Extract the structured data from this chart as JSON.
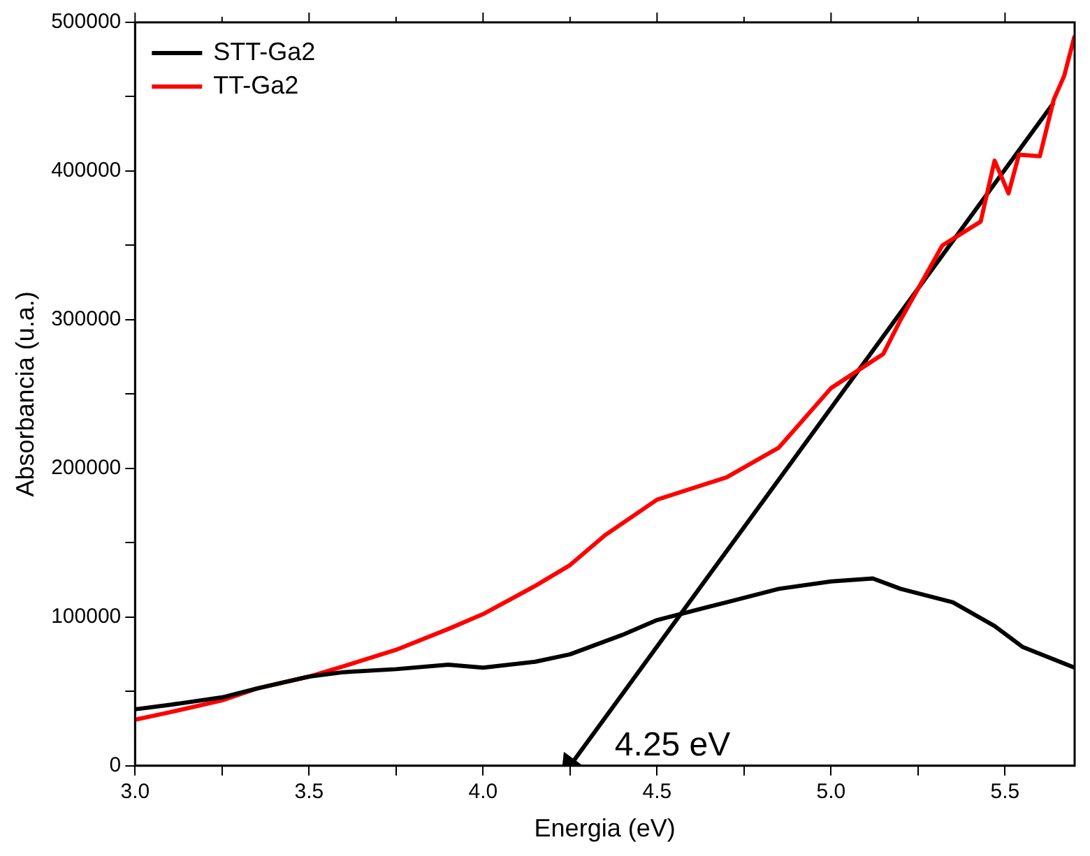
{
  "chart_data": {
    "type": "line",
    "xlabel": "Energia (eV)",
    "ylabel": "Absorbancia (u.a.)",
    "xlim": [
      3.0,
      5.7
    ],
    "xticks": [
      {
        "value": 3.0,
        "label": "3.0"
      },
      {
        "value": 3.25,
        "label": null
      },
      {
        "value": 3.5,
        "label": "3.5"
      },
      {
        "value": 3.75,
        "label": null
      },
      {
        "value": 4.0,
        "label": "4.0"
      },
      {
        "value": 4.25,
        "label": null
      },
      {
        "value": 4.5,
        "label": "4.5"
      },
      {
        "value": 4.75,
        "label": null
      },
      {
        "value": 5.0,
        "label": "5.0"
      },
      {
        "value": 5.25,
        "label": null
      },
      {
        "value": 5.5,
        "label": "5.5"
      }
    ],
    "ylim": [
      0,
      500000
    ],
    "yticks": [
      0,
      {
        "value": 50000,
        "label": null
      },
      100000,
      {
        "value": 150000,
        "label": null
      },
      200000,
      {
        "value": 250000,
        "label": null
      },
      300000,
      {
        "value": 350000,
        "label": null
      },
      400000,
      {
        "value": 450000,
        "label": null
      },
      500000
    ],
    "grid": false,
    "legend": "top left",
    "marker": "none",
    "line_style": "solid",
    "series": [
      {
        "name": "STT-Ga2",
        "color": "#000000",
        "x": [
          3.0,
          3.1,
          3.25,
          3.35,
          3.5,
          3.6,
          3.75,
          3.9,
          4.0,
          4.15,
          4.25,
          4.4,
          4.5,
          4.7,
          4.85,
          5.0,
          5.12,
          5.2,
          5.35,
          5.47,
          5.55,
          5.7
        ],
        "values": [
          38000,
          41000,
          46000,
          52000,
          60000,
          63000,
          65000,
          68000,
          66000,
          70000,
          75000,
          88000,
          98000,
          110000,
          119000,
          124000,
          126000,
          119000,
          110000,
          94000,
          80000,
          66000
        ]
      },
      {
        "name": "TT-Ga2",
        "color": "#ff0000",
        "x": [
          3.0,
          3.1,
          3.25,
          3.35,
          3.5,
          3.6,
          3.75,
          3.9,
          4.0,
          4.15,
          4.25,
          4.35,
          4.5,
          4.7,
          4.85,
          5.0,
          5.15,
          5.2,
          5.32,
          5.43,
          5.47,
          5.51,
          5.54,
          5.6,
          5.64,
          5.67,
          5.7
        ],
        "values": [
          31000,
          36000,
          44000,
          52000,
          60000,
          67000,
          78000,
          92000,
          102000,
          121000,
          135000,
          155000,
          179000,
          194000,
          214000,
          254000,
          277000,
          300000,
          350000,
          366000,
          407000,
          385000,
          411000,
          410000,
          448000,
          464000,
          491000
        ]
      },
      {
        "type": "line",
        "marker": "triangle",
        "color": "#000000",
        "x": [
          4.25,
          5.64
        ],
        "values": [
          0,
          446000
        ]
      }
    ],
    "annotations": [
      {
        "text": "4.25 eV",
        "x": 4.25,
        "y": 0
      }
    ]
  }
}
